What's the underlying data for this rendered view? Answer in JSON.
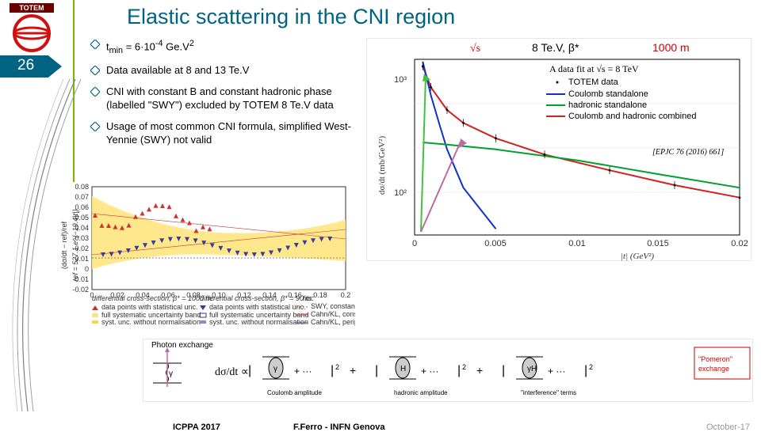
{
  "title": "Elastic scattering in the CNI region",
  "slide_number": "26",
  "logo": {
    "text_top": "TOTEM",
    "ring_color": "#d01010",
    "band_color": "#6a0000"
  },
  "bullets": [
    {
      "html": "t<sub>min</sub> = 6·10<sup>-4</sup> Ge.V<sup>2</sup>"
    },
    {
      "text": "Data available at 8 and 13 Te.V"
    },
    {
      "text": "CNI with constant B and constant hadronic phase (labelled \"SWY\") excluded by TOTEM 8 Te.V data"
    },
    {
      "text": "Usage of most common CNI formula, simplified West-Yennie (SWY) not valid"
    }
  ],
  "top_chart": {
    "header": {
      "sqrt_s": "√s",
      "tev": "8 Te.V, β*",
      "dist": "1000 m",
      "color_red": "#cc0000"
    },
    "subtitle": "A data fit at √s = 8 TeV",
    "legend": [
      {
        "label": "TOTEM data",
        "type": "marker",
        "color": "#000000"
      },
      {
        "label": "Coulomb standalone",
        "type": "line",
        "color": "#1030d0"
      },
      {
        "label": "hadronic standalone",
        "type": "line",
        "color": "#00a030"
      },
      {
        "label": "Coulomb and hadronic combined",
        "type": "line",
        "color": "#d02020"
      }
    ],
    "citation": "[EPJC 76 (2016) 661]",
    "y_label": "dσ/dt  (mb/GeV²)",
    "y_ticks": [
      "10³",
      "10²"
    ],
    "x_label": "|t|  (GeV²)",
    "x_ticks": [
      "0",
      "0.005",
      "0.01",
      "0.015",
      "0.02"
    ],
    "combined_curve": [
      [
        0.0005,
        2100
      ],
      [
        0.001,
        1400
      ],
      [
        0.002,
        900
      ],
      [
        0.003,
        700
      ],
      [
        0.005,
        520
      ],
      [
        0.008,
        380
      ],
      [
        0.012,
        280
      ],
      [
        0.016,
        210
      ],
      [
        0.02,
        165
      ]
    ],
    "coulomb_curve": [
      [
        0.0005,
        2300
      ],
      [
        0.001,
        1200
      ],
      [
        0.0015,
        700
      ],
      [
        0.002,
        420
      ],
      [
        0.003,
        200
      ],
      [
        0.005,
        90
      ]
    ],
    "hadronic_curve": [
      [
        0.0005,
        480
      ],
      [
        0.002,
        460
      ],
      [
        0.005,
        420
      ],
      [
        0.01,
        340
      ],
      [
        0.015,
        260
      ],
      [
        0.02,
        200
      ]
    ],
    "colors": {
      "grid": "#dddddd",
      "axis": "#333333",
      "bg": "#ffffff"
    }
  },
  "left_chart": {
    "y_label": "(dσ/dt − ref)/ref",
    "side_text": "ref = 527.1 e^{−19.4|t|}",
    "y_ticks": [
      "0.08",
      "0.07",
      "0.06",
      "0.05",
      "0.04",
      "0.03",
      "0.02",
      "0.01",
      "0",
      "-0.01",
      "-0.02"
    ],
    "x_ticks": [
      "0",
      "0.02",
      "0.04",
      "0.06",
      "0.08",
      "0.10",
      "0.12",
      "0.14",
      "0.16",
      "0.18",
      "0.2"
    ],
    "band_color": "#ffe680",
    "hatch_color": "#cc3333",
    "legend_left": {
      "title": "differential cross-section, β* = 1000 m:",
      "items": [
        {
          "marker": "triangle",
          "color": "#cc3333",
          "text": "data points with statistical unc."
        },
        {
          "marker": "band",
          "color": "#ffe680",
          "text": "full systematic uncertainty band"
        },
        {
          "marker": "thinband",
          "color": "#f7d24a",
          "text": "syst. unc. without normalisation"
        }
      ]
    },
    "legend_mid": {
      "title": "differential cross-section, β* = 90 m:",
      "items": [
        {
          "marker": "triangle-down",
          "color": "#3a3a9a",
          "text": "data points with statistical unc."
        },
        {
          "marker": "hatch",
          "color": "#3a3a9a",
          "text": "full systematic uncertainty band"
        },
        {
          "marker": "thinband",
          "color": "#8a8ad0",
          "text": "syst. unc. without normalisation"
        }
      ]
    },
    "legend_right": {
      "title": "fits:",
      "items": [
        {
          "line": "dashed",
          "color": "#cc3333",
          "text": "SWY, constant"
        },
        {
          "line": "solid",
          "color": "#cc3333",
          "text": "Cahn/KL, constant"
        },
        {
          "line": "solid",
          "color": "#3a3a9a",
          "text": "Cahn/KL, peripheral"
        }
      ]
    }
  },
  "bottom_diagram": {
    "photon_label": "Photon exchange",
    "lhs": "dσ/dt ∝",
    "parts": [
      {
        "label": "Coulomb amplitude",
        "glyph": "γ"
      },
      {
        "label": "hadronic amplitude",
        "glyph": "H"
      },
      {
        "label": "\"interference\" terms",
        "glyph": "γH"
      }
    ],
    "pomeron_box": {
      "text": "\"Pomeron\" exchange",
      "color": "#cc0000",
      "border": "#cc0000"
    }
  },
  "footer": {
    "conf": "ICPPA 2017",
    "author": "F.Ferro - INFN Genova",
    "date": "October-17"
  }
}
